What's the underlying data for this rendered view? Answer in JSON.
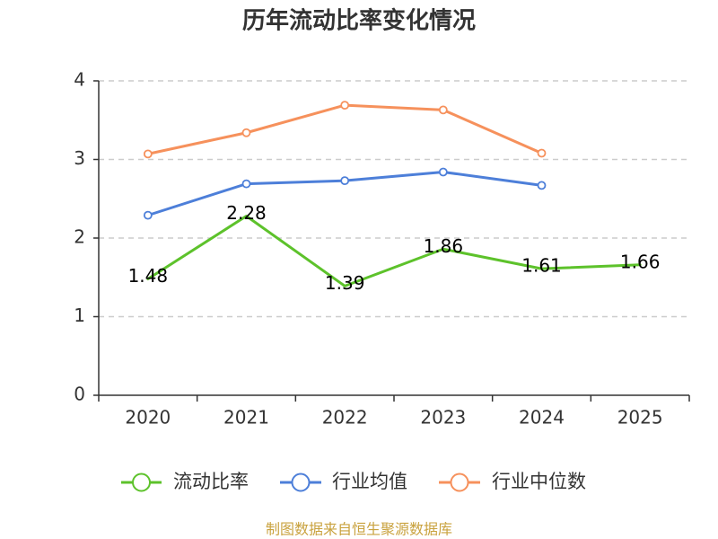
{
  "chart_data": {
    "type": "line",
    "title": "历年流动比率变化情况",
    "categories": [
      "2020",
      "2021",
      "2022",
      "2023",
      "2024",
      "2025"
    ],
    "ylim": [
      0,
      4
    ],
    "yticks": [
      0,
      1,
      2,
      3,
      4
    ],
    "grid": true,
    "legend_position": "bottom",
    "series": [
      {
        "name": "流动比率",
        "color": "#5dc22b",
        "values": [
          1.48,
          2.28,
          1.39,
          1.86,
          1.61,
          1.66
        ],
        "markers": false,
        "show_labels": true
      },
      {
        "name": "行业均值",
        "color": "#4d7fd9",
        "values": [
          2.29,
          2.69,
          2.73,
          2.84,
          2.67,
          null
        ],
        "markers": true,
        "show_labels": false
      },
      {
        "name": "行业中位数",
        "color": "#f6915c",
        "values": [
          3.07,
          3.34,
          3.69,
          3.63,
          3.08,
          null
        ],
        "markers": true,
        "show_labels": false
      }
    ]
  },
  "footer": {
    "source": "制图数据来自恒生聚源数据库",
    "color": "#c9a23e"
  },
  "styles": {
    "axis_color": "#333333",
    "grid_color": "#cccccc"
  }
}
